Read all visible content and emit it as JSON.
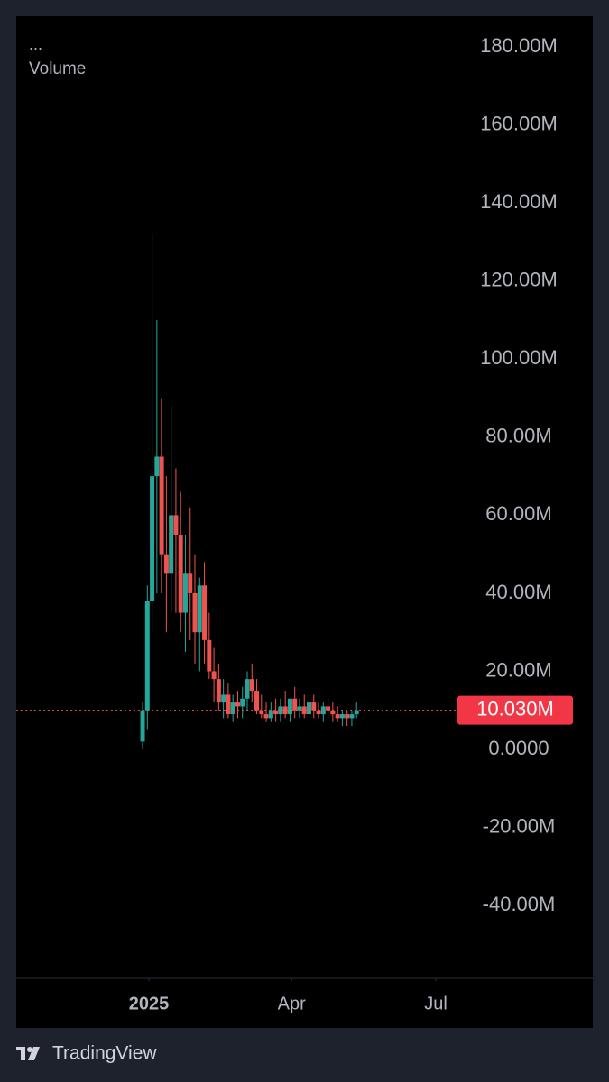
{
  "chart_data": {
    "type": "candlestick",
    "title": "Volume",
    "subtitle": "...",
    "x": [
      -4,
      -1,
      2,
      5,
      8,
      11,
      14,
      17,
      20,
      23,
      26,
      29,
      32,
      35,
      38,
      41,
      44,
      47,
      50,
      53,
      56,
      59,
      62,
      65,
      68,
      71,
      74,
      77,
      80,
      83,
      86,
      89,
      92,
      95,
      98,
      101,
      104,
      107,
      110,
      113,
      116,
      119,
      122,
      125,
      128,
      131
    ],
    "open": [
      2,
      10,
      38,
      70,
      75,
      50,
      45,
      60,
      55,
      35,
      45,
      40,
      30,
      42,
      28,
      20,
      18,
      12,
      14,
      9,
      12,
      11,
      13,
      18,
      15,
      10,
      9,
      8,
      10,
      9,
      11,
      9,
      13,
      10,
      11,
      9,
      12,
      10,
      9,
      11,
      10,
      9,
      8,
      9,
      8,
      9
    ],
    "high": [
      12,
      42,
      132,
      110,
      90,
      70,
      88,
      72,
      66,
      55,
      62,
      50,
      44,
      48,
      35,
      26,
      22,
      18,
      17,
      14,
      15,
      16,
      20,
      22,
      18,
      14,
      12,
      12,
      13,
      13,
      15,
      12,
      16,
      13,
      14,
      12,
      14,
      12,
      12,
      13,
      12,
      11,
      10,
      10,
      10,
      12
    ],
    "low": [
      0,
      5,
      30,
      40,
      40,
      30,
      35,
      35,
      30,
      25,
      28,
      22,
      20,
      22,
      18,
      12,
      10,
      8,
      8,
      7,
      8,
      8,
      10,
      12,
      9,
      8,
      7,
      7,
      7,
      7,
      8,
      7,
      8,
      8,
      8,
      7,
      8,
      8,
      7,
      8,
      7,
      7,
      6,
      6,
      6,
      8
    ],
    "close": [
      10,
      38,
      70,
      75,
      50,
      45,
      60,
      55,
      35,
      45,
      40,
      30,
      42,
      28,
      20,
      18,
      12,
      14,
      9,
      12,
      11,
      13,
      18,
      15,
      10,
      9,
      8,
      10,
      9,
      11,
      9,
      13,
      10,
      11,
      9,
      12,
      10,
      9,
      11,
      10,
      9,
      8,
      9,
      8,
      9,
      10.03
    ],
    "up_color": "#26a69a",
    "down_color": "#ef5350",
    "ylim": [
      -58.7,
      187.9
    ],
    "yticks": [
      {
        "value": -40,
        "label": "-40.00M"
      },
      {
        "value": -20,
        "label": "-20.00M"
      },
      {
        "value": 0,
        "label": "0.0000"
      },
      {
        "value": 20,
        "label": "20.00M"
      },
      {
        "value": 40,
        "label": "40.00M"
      },
      {
        "value": 60,
        "label": "60.00M"
      },
      {
        "value": 80,
        "label": "80.00M"
      },
      {
        "value": 100,
        "label": "100.00M"
      },
      {
        "value": 120,
        "label": "120.00M"
      },
      {
        "value": 140,
        "label": "140.00M"
      },
      {
        "value": 160,
        "label": "160.00M"
      },
      {
        "value": 180,
        "label": "180.00M"
      }
    ],
    "xlim": [
      -83.7,
      280
    ],
    "xticks": [
      {
        "value": 0,
        "label": "2025"
      },
      {
        "value": 90,
        "label": "Apr"
      },
      {
        "value": 181,
        "label": "Jul"
      }
    ],
    "last": {
      "value": 10.03,
      "label": "10.030M"
    }
  },
  "footer": "TradingView"
}
